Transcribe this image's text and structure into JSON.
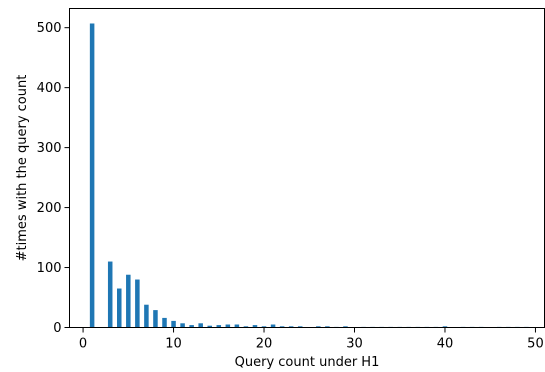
{
  "chart_data": {
    "type": "bar",
    "title": "",
    "xlabel": "Query count under H1",
    "ylabel": "#times with the query count",
    "xlim": [
      -1.5,
      51
    ],
    "ylim": [
      0,
      532
    ],
    "grid": false,
    "bar_color": "#1f77b4",
    "bar_width": 0.5,
    "x_ticks": [
      0,
      10,
      20,
      30,
      40,
      50
    ],
    "y_ticks": [
      0,
      100,
      200,
      300,
      400,
      500
    ],
    "x": [
      1,
      3,
      4,
      5,
      6,
      7,
      8,
      9,
      10,
      11,
      12,
      13,
      14,
      15,
      16,
      17,
      18,
      19,
      20,
      21,
      22,
      23,
      24,
      26,
      27,
      28,
      29,
      31,
      32,
      33,
      34,
      35,
      36,
      37,
      38,
      39,
      40,
      42,
      43,
      44,
      46,
      47,
      48,
      49
    ],
    "values": [
      507,
      110,
      65,
      88,
      80,
      38,
      29,
      16,
      11,
      7,
      4,
      7,
      3,
      4,
      5,
      5,
      2,
      4,
      2,
      5,
      2,
      2,
      2,
      2,
      2,
      1,
      2,
      1,
      1,
      1,
      1,
      1,
      1,
      1,
      1,
      1,
      2,
      1,
      1,
      1,
      1,
      1,
      1,
      1
    ]
  }
}
